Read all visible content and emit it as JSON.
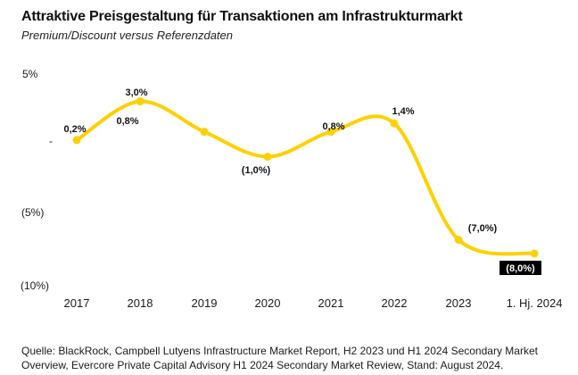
{
  "header": {
    "title": "Attraktive Preisgestaltung für Transaktionen am Infrastrukturmarkt",
    "subtitle": "Premium/Discount versus Referenzdaten"
  },
  "chart_data": {
    "type": "line",
    "title": "Attraktive Preisgestaltung für Transaktionen am Infrastrukturmarkt",
    "subtitle": "Premium/Discount versus Referenzdaten",
    "categories": [
      "2017",
      "2018",
      "2019",
      "2020",
      "2021",
      "2022",
      "2023",
      "1. Hj. 2024"
    ],
    "series": [
      {
        "name": "Premium/Discount versus Referenzdaten",
        "values": [
          0.2,
          3.0,
          0.8,
          -1.0,
          0.8,
          1.4,
          -7.0,
          -8.0
        ]
      }
    ],
    "point_labels": [
      "0,2%",
      "3,0%",
      "0,8%",
      "(1,0%)",
      "0,8%",
      "1,4%",
      "(7,0%)",
      "(8,0%)"
    ],
    "y_ticks": [
      {
        "value": 5,
        "label": "5%"
      },
      {
        "value": 0,
        "label": "-"
      },
      {
        "value": -5,
        "label": "(5%)"
      },
      {
        "value": -10,
        "label": "(10%)"
      }
    ],
    "ylim": [
      -10.5,
      6.3
    ],
    "xlabel": "",
    "ylabel": "",
    "grid": false,
    "legend": "none",
    "negative_format": "parentheses",
    "line_color": "#FFD000",
    "marker_color": "#FFD000",
    "last_point_badge": {
      "text": "(8,0%)",
      "bg": "#000000",
      "fg": "#FFFFFF"
    }
  },
  "footer": {
    "source": "Quelle: BlackRock, Campbell Lutyens Infrastructure Market Report, H2 2023 und H1 2024 Secondary Market Overview, Evercore Private Capital Advisory H1 2024 Secondary Market Review, Stand: August 2024."
  },
  "colors": {
    "background": "#FFFFFF",
    "text": "#1A1A1A",
    "accent": "#FFD000"
  }
}
